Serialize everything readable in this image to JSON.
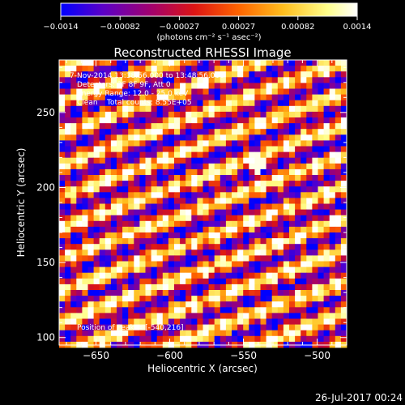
{
  "chart_data": {
    "type": "heatmap",
    "title": "Reconstructed RHESSI Image",
    "xlabel": "Heliocentric X (arcsec)",
    "ylabel": "Heliocentric Y (arcsec)",
    "xlim": [
      -675,
      -480
    ],
    "ylim": [
      95,
      285
    ],
    "x_ticks": [
      -650,
      -600,
      -550,
      -500
    ],
    "x_tick_labels": [
      "−650",
      "−600",
      "−550",
      "−500"
    ],
    "y_ticks": [
      100,
      150,
      200,
      250
    ],
    "y_tick_labels": [
      "100",
      "150",
      "200",
      "250"
    ],
    "colorbar": {
      "min": -0.0014,
      "max": 0.0014,
      "tick_labels": [
        "−0.0014",
        "−0.00082",
        "−0.00027",
        "0.00027",
        "0.00082",
        "0.0014"
      ],
      "unit": "(photons cm⁻² s⁻¹ asec⁻²)",
      "colormap": [
        "#0000ff",
        "#5a00c8",
        "#a00070",
        "#dc1414",
        "#ff6400",
        "#ffbe1e",
        "#ffff8c",
        "#ffffff"
      ]
    },
    "grid": false,
    "annotations": [
      "7-Nov-2014 13:38:56.000 to 13:48:56.000",
      "Detectors: 3F 8F 9F, Att 0",
      "Energy Range: 12.0 - 25.0 keV",
      "Clean    Total counts: 8.55E+05",
      "Position of Peak = [-540,216]"
    ],
    "peak": {
      "x": -540,
      "y": 216
    },
    "pattern": "diagonal fringe stripes rising to upper-left across the field"
  },
  "footer": {
    "timestamp": "26-Jul-2017 00:24"
  }
}
